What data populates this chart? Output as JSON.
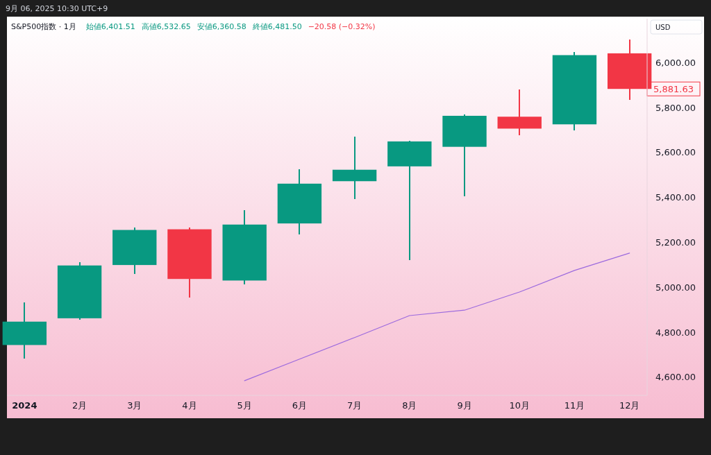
{
  "chart_data": {
    "type": "candlestick",
    "title": "S&P500指数 · 1月",
    "categories": [
      "2024",
      "2月",
      "3月",
      "4月",
      "5月",
      "6月",
      "7月",
      "8月",
      "9月",
      "10月",
      "11月",
      "12月"
    ],
    "ohlc": [
      [
        4742,
        4931,
        4683,
        4846
      ],
      [
        4861,
        5111,
        4853,
        5096
      ],
      [
        5098,
        5265,
        5057,
        5254
      ],
      [
        5257,
        5264,
        4953,
        5036
      ],
      [
        5029,
        5342,
        5011,
        5278
      ],
      [
        5283,
        5523,
        5234,
        5460
      ],
      [
        5471,
        5670,
        5391,
        5522
      ],
      [
        5537,
        5652,
        5120,
        5648
      ],
      [
        5624,
        5768,
        5403,
        5762
      ],
      [
        5758,
        5878,
        5675,
        5705
      ],
      [
        5724,
        6045,
        5697,
        6032
      ],
      [
        6040,
        6100,
        5833,
        5881.63
      ]
    ],
    "colors": [
      "#089981",
      "#089981",
      "#089981",
      "#f23645",
      "#089981",
      "#089981",
      "#089981",
      "#089981",
      "#089981",
      "#f23645",
      "#089981",
      "#f23645"
    ],
    "series": [
      {
        "type": "line",
        "color": "#9c6ade",
        "values": [
          null,
          null,
          null,
          null,
          4583,
          4679,
          4775,
          4873,
          4897,
          4978,
          5074,
          5151
        ]
      }
    ],
    "ylim": [
      4518,
      6194
    ],
    "yticks": [
      {
        "value": 4600,
        "label": "4,600.00"
      },
      {
        "value": 4800,
        "label": "4,800.00"
      },
      {
        "value": 5000,
        "label": "5,000.00"
      },
      {
        "value": 5200,
        "label": "5,200.00"
      },
      {
        "value": 5400,
        "label": "5,400.00"
      },
      {
        "value": 5600,
        "label": "5,600.00"
      },
      {
        "value": 5800,
        "label": "5,800.00"
      },
      {
        "value": 6000,
        "label": "6,000.00"
      }
    ],
    "grid": false,
    "annotations": [
      "9月 06, 2025 10:30 UTC+9",
      "始値6,401.51",
      "高値6,532.65",
      "安値6,360.58",
      "終値6,481.50",
      "−20.58 (−0.32%)",
      "5,881.63",
      "USD"
    ]
  }
}
